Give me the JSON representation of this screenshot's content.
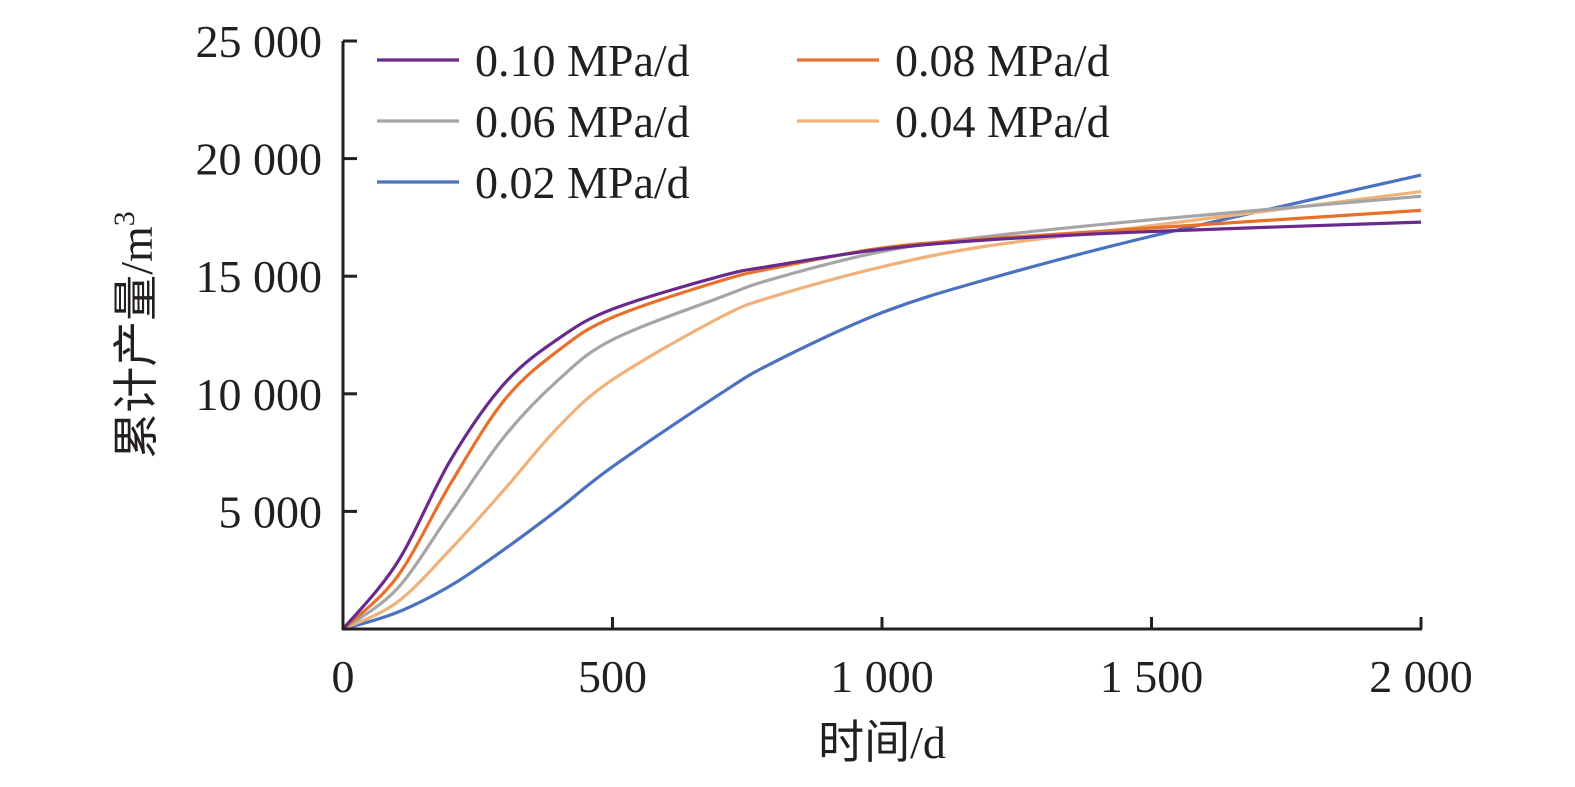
{
  "chart_data": {
    "type": "line",
    "title": "",
    "xlabel": "时间/d",
    "ylabel": "累计产量/m",
    "ylabel_superscript": "3",
    "xlim": [
      0,
      2000
    ],
    "ylim": [
      0,
      25000
    ],
    "grid": false,
    "legend_position": "top-left",
    "x_ticks": [
      0,
      500,
      1000,
      1500,
      2000
    ],
    "x_tick_labels": [
      "0",
      "500",
      "1 000",
      "1 500",
      "2 000"
    ],
    "y_ticks": [
      5000,
      10000,
      15000,
      20000,
      25000
    ],
    "y_tick_labels": [
      "5 000",
      "10 000",
      "15 000",
      "20 000",
      "25 000"
    ],
    "x": [
      0,
      100,
      200,
      300,
      400,
      500,
      700,
      800,
      1000,
      1200,
      1500,
      2000
    ],
    "series": [
      {
        "name": "0.10 MPa/d",
        "color": "#6a2a8c",
        "values": [
          0,
          2800,
          7200,
          10450,
          12350,
          13600,
          15000,
          15450,
          16150,
          16550,
          16900,
          17300
        ]
      },
      {
        "name": "0.08 MPa/d",
        "color": "#e8702a",
        "values": [
          0,
          2200,
          6200,
          9750,
          11850,
          13250,
          14800,
          15350,
          16200,
          16600,
          17050,
          17800
        ]
      },
      {
        "name": "0.06 MPa/d",
        "color": "#a5a5a5",
        "values": [
          0,
          1700,
          4950,
          8200,
          10600,
          12300,
          14100,
          14900,
          16050,
          16700,
          17400,
          18400
        ]
      },
      {
        "name": "0.04 MPa/d",
        "color": "#f0b27a",
        "values": [
          0,
          1130,
          3400,
          5950,
          8600,
          10600,
          13250,
          14150,
          15400,
          16300,
          17150,
          18600
        ]
      },
      {
        "name": "0.02 MPa/d",
        "color": "#4a72c0",
        "values": [
          0,
          700,
          1850,
          3400,
          5100,
          6900,
          10000,
          11350,
          13450,
          14900,
          16700,
          19300
        ]
      }
    ]
  }
}
